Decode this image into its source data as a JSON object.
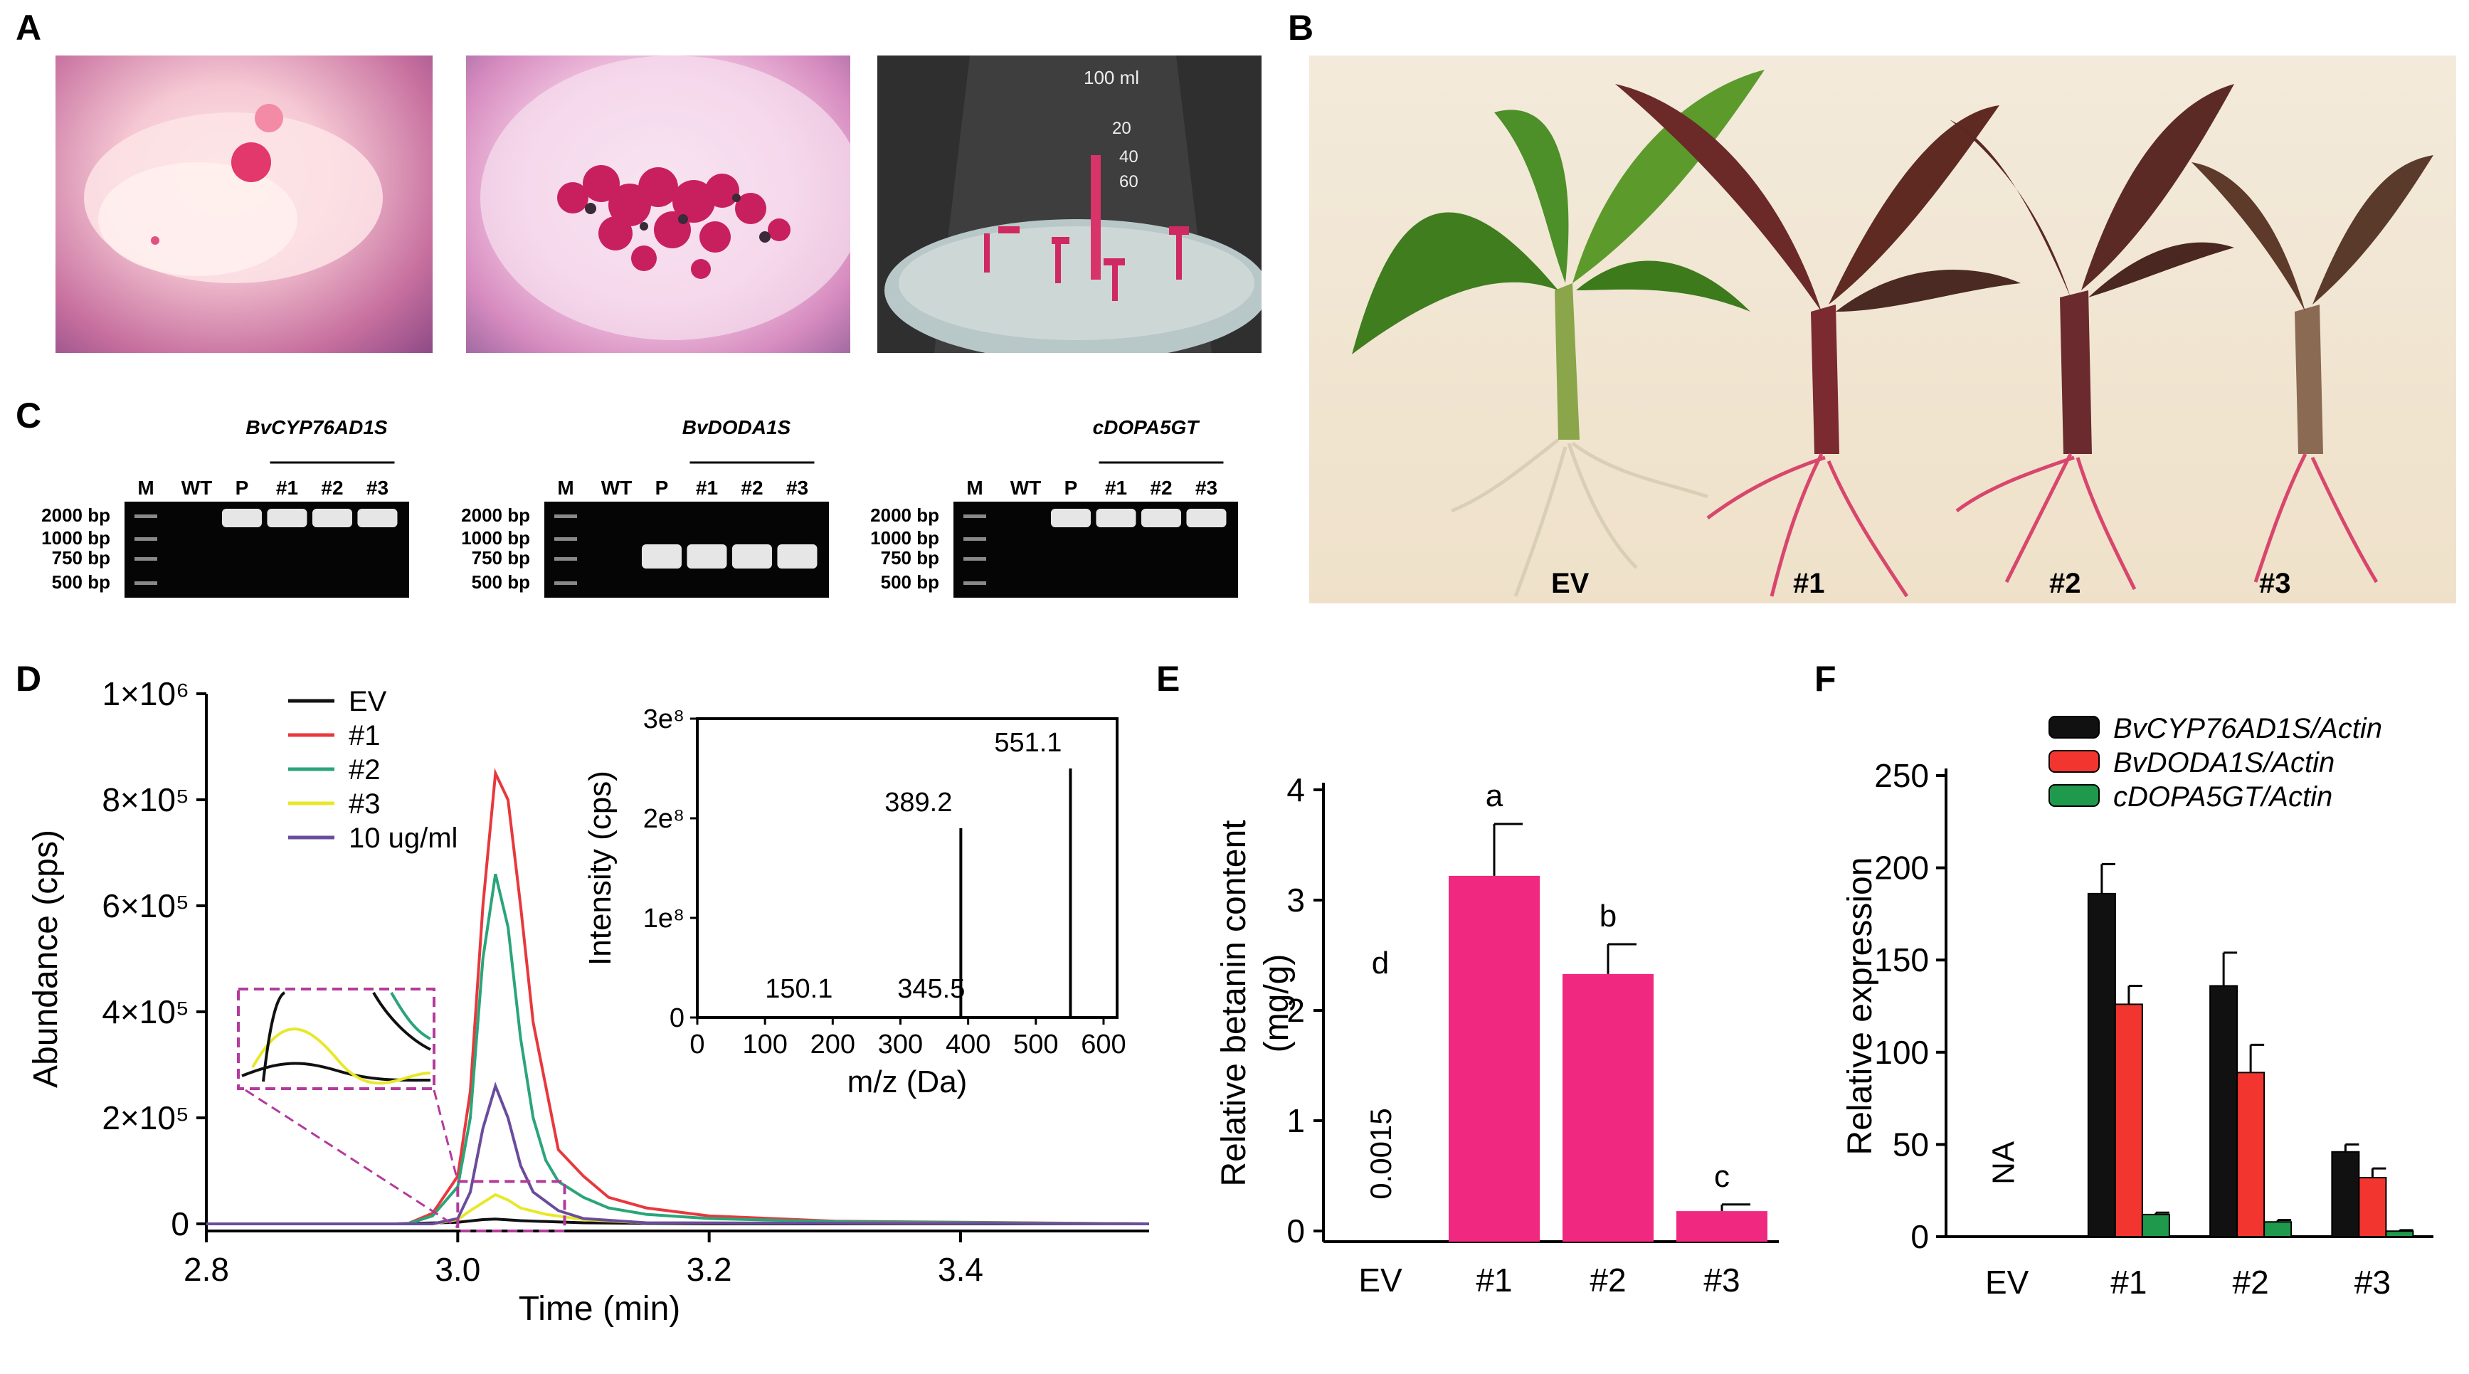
{
  "panels": {
    "A": {
      "label": "A"
    },
    "B": {
      "label": "B",
      "plant_labels": [
        "EV",
        "#1",
        "#2",
        "#3"
      ]
    },
    "C": {
      "label": "C",
      "gels": [
        {
          "gene": "BvCYP76AD1S",
          "lanes": [
            "M",
            "WT",
            "P",
            "#1",
            "#2",
            "#3"
          ],
          "bands_in_lanes": [
            "P",
            "#1",
            "#2",
            "#3"
          ],
          "band_size": "2000 bp"
        },
        {
          "gene": "BvDODA1S",
          "lanes": [
            "M",
            "WT",
            "P",
            "#1",
            "#2",
            "#3"
          ],
          "bands_in_lanes": [
            "P",
            "#1",
            "#2",
            "#3"
          ],
          "band_size": "750 bp"
        },
        {
          "gene": "cDOPA5GT",
          "lanes": [
            "M",
            "WT",
            "P",
            "#1",
            "#2",
            "#3"
          ],
          "bands_in_lanes": [
            "P",
            "#1",
            "#2",
            "#3"
          ],
          "band_size": "2000 bp"
        }
      ],
      "ladder": [
        "2000 bp",
        "1000 bp",
        "750 bp",
        "500 bp"
      ]
    },
    "D": {
      "label": "D"
    },
    "E": {
      "label": "E"
    },
    "F": {
      "label": "F"
    }
  },
  "chart_data": [
    {
      "id": "D",
      "type": "line",
      "xlabel": "Time (min)",
      "ylabel": "Abundance (cps)",
      "xlim": [
        2.8,
        3.55
      ],
      "ylim": [
        0,
        1000000
      ],
      "xticks": [
        "2.8",
        "3.0",
        "3.2",
        "3.4"
      ],
      "yticks": [
        "0",
        "2×10⁵",
        "4×10⁵",
        "6×10⁵",
        "8×10⁵",
        "1×10⁶"
      ],
      "legend_position": "top-left",
      "series": [
        {
          "name": "EV",
          "color": "#111111",
          "x": [
            2.8,
            2.95,
            3.0,
            3.02,
            3.03,
            3.05,
            3.1,
            3.2,
            3.55
          ],
          "y": [
            0,
            0,
            3000,
            8000,
            9000,
            6000,
            2000,
            0,
            0
          ]
        },
        {
          "name": "#1",
          "color": "#e8383d",
          "x": [
            2.8,
            2.96,
            2.98,
            3.0,
            3.01,
            3.02,
            3.03,
            3.04,
            3.05,
            3.06,
            3.07,
            3.08,
            3.1,
            3.12,
            3.15,
            3.2,
            3.3,
            3.55
          ],
          "y": [
            0,
            0,
            20000,
            90000,
            250000,
            600000,
            850000,
            800000,
            600000,
            380000,
            260000,
            140000,
            90000,
            50000,
            30000,
            15000,
            5000,
            0
          ]
        },
        {
          "name": "#2",
          "color": "#2aa57a",
          "x": [
            2.8,
            2.96,
            2.98,
            3.0,
            3.01,
            3.02,
            3.03,
            3.04,
            3.05,
            3.06,
            3.07,
            3.08,
            3.1,
            3.12,
            3.15,
            3.2,
            3.3,
            3.55
          ],
          "y": [
            0,
            0,
            15000,
            70000,
            200000,
            500000,
            660000,
            560000,
            350000,
            200000,
            120000,
            80000,
            50000,
            30000,
            18000,
            10000,
            4000,
            0
          ]
        },
        {
          "name": "#3",
          "color": "#e8e82a",
          "x": [
            2.8,
            2.98,
            3.0,
            3.01,
            3.02,
            3.03,
            3.04,
            3.05,
            3.07,
            3.1,
            3.15,
            3.55
          ],
          "y": [
            0,
            0,
            8000,
            25000,
            40000,
            55000,
            45000,
            30000,
            18000,
            8000,
            2000,
            0
          ]
        },
        {
          "name": "10 ug/ml",
          "color": "#6a4c9c",
          "x": [
            2.8,
            2.98,
            3.0,
            3.01,
            3.02,
            3.03,
            3.04,
            3.05,
            3.06,
            3.08,
            3.1,
            3.15,
            3.55
          ],
          "y": [
            0,
            0,
            10000,
            60000,
            180000,
            260000,
            200000,
            110000,
            60000,
            25000,
            10000,
            2000,
            0
          ]
        }
      ],
      "inset": {
        "type": "bar",
        "xlabel": "m/z (Da)",
        "ylabel": "Intensity (cps)",
        "xlim": [
          0,
          620
        ],
        "ylim": [
          0,
          300000000
        ],
        "xticks": [
          "0",
          "100",
          "200",
          "300",
          "400",
          "500",
          "600"
        ],
        "yticks": [
          "0",
          "1e⁸",
          "2e⁸",
          "3e⁸"
        ],
        "peaks": [
          {
            "mz": 150.1,
            "intensity": 0,
            "label": "150.1"
          },
          {
            "mz": 345.5,
            "intensity": 0,
            "label": "345.5"
          },
          {
            "mz": 389.2,
            "intensity": 190000000,
            "label": "389.2"
          },
          {
            "mz": 551.1,
            "intensity": 250000000,
            "label": "551.1"
          }
        ]
      }
    },
    {
      "id": "E",
      "type": "bar",
      "categories": [
        "EV",
        "#1",
        "#2",
        "#3"
      ],
      "values": [
        0.0015,
        3.22,
        2.33,
        0.18
      ],
      "errors": [
        0,
        0.47,
        0.27,
        0.06
      ],
      "letters": [
        "d",
        "a",
        "b",
        "c"
      ],
      "value_annotation": "0.0015",
      "ylabel": "Relative betanin content (mg/g)",
      "ylim": [
        0,
        4
      ],
      "yticks": [
        "0",
        "1",
        "2",
        "3",
        "4"
      ],
      "color": "#f0287f"
    },
    {
      "id": "F",
      "type": "bar",
      "categories": [
        "EV",
        "#1",
        "#2",
        "#3"
      ],
      "ylabel": "Relative expression",
      "ylim": [
        0,
        250
      ],
      "yticks": [
        "0",
        "50",
        "100",
        "150",
        "200",
        "250"
      ],
      "na_label": "NA",
      "legend_position": "top",
      "series": [
        {
          "name": "BvCYP76AD1S/Actin",
          "color": "#111111",
          "values": [
            0,
            186,
            136,
            46
          ],
          "errors": [
            0,
            16,
            18,
            4
          ]
        },
        {
          "name": "BvDODA1S/Actin",
          "color": "#f2362f",
          "values": [
            0,
            126,
            89,
            32
          ],
          "errors": [
            0,
            10,
            15,
            5
          ]
        },
        {
          "name": "cDOPA5GT/Actin",
          "color": "#1f9a4c",
          "values": [
            0,
            12,
            8,
            3
          ],
          "errors": [
            0,
            1,
            1,
            0.5
          ]
        }
      ]
    }
  ]
}
